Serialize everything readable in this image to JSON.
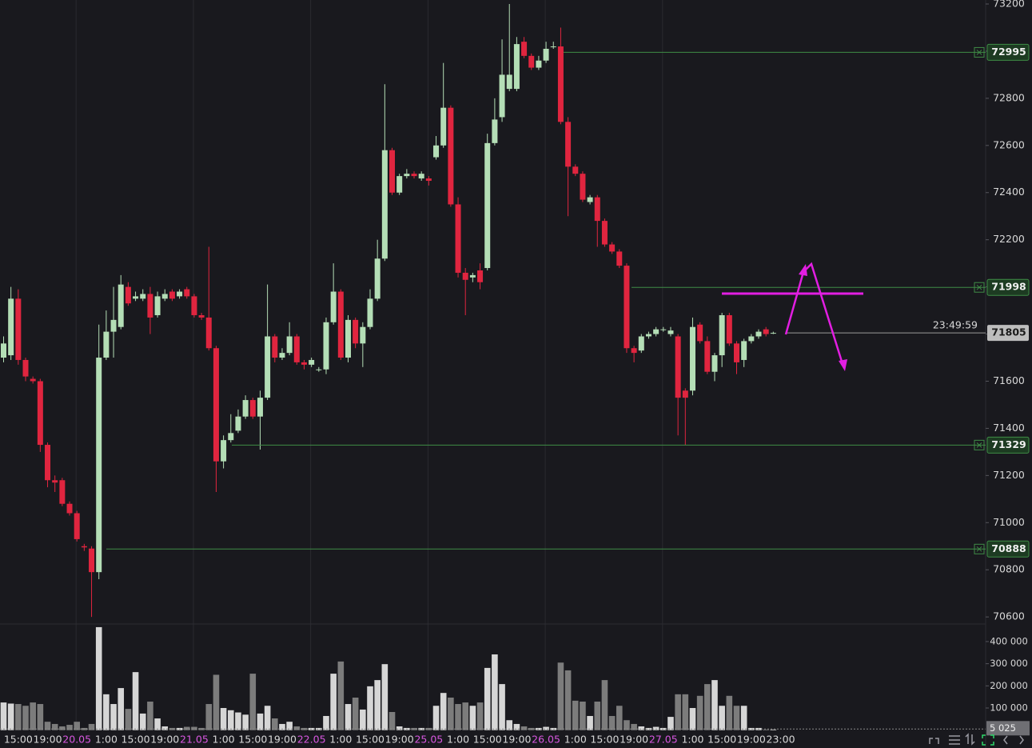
{
  "chart_data": {
    "type": "candlestick",
    "categories": [
      null,
      null,
      "15:00",
      null,
      null,
      null,
      "19:00",
      null,
      null,
      null,
      "20.05",
      null,
      null,
      null,
      "1:00",
      null,
      null,
      null,
      "15:00",
      null,
      null,
      null,
      "19:00",
      null,
      null,
      null,
      "21.05",
      null,
      null,
      null,
      "1:00",
      null,
      null,
      null,
      "15:00",
      null,
      null,
      null,
      "19:00",
      null,
      null,
      null,
      "22.05",
      null,
      null,
      null,
      "1:00",
      null,
      null,
      null,
      "15:00",
      null,
      null,
      null,
      "19:00",
      null,
      null,
      null,
      "25.05",
      null,
      null,
      null,
      "1:00",
      null,
      null,
      null,
      "15:00",
      null,
      null,
      null,
      "19:00",
      null,
      null,
      null,
      "26.05",
      null,
      null,
      null,
      "1:00",
      null,
      null,
      null,
      "15:00",
      null,
      null,
      null,
      "19:00",
      null,
      null,
      null,
      "27.05",
      null,
      null,
      null,
      "1:00",
      null,
      null,
      null,
      "15:00",
      null,
      null,
      null,
      "19:00",
      null,
      null,
      null,
      "23:00"
    ],
    "open": [
      71700,
      71710,
      71950,
      71690,
      71610,
      71600,
      71330,
      71180,
      71180,
      71080,
      71040,
      70900,
      70890,
      70790,
      71700,
      71810,
      71830,
      72000,
      71950,
      71950,
      71970,
      71880,
      71950,
      71980,
      71960,
      71990,
      71960,
      71880,
      71870,
      71740,
      71260,
      71350,
      71390,
      71450,
      71520,
      71450,
      71530,
      71790,
      71700,
      71720,
      71790,
      71680,
      71670,
      71650,
      71650,
      71850,
      71980,
      71700,
      71860,
      71760,
      71830,
      71950,
      72120,
      72580,
      72400,
      72470,
      72480,
      72460,
      72460,
      72550,
      72600,
      72760,
      72350,
      72060,
      72040,
      72070,
      72080,
      72610,
      72720,
      72840,
      72840,
      73040,
      72980,
      72930,
      72960,
      73020,
      73020,
      72700,
      72510,
      72480,
      72360,
      72380,
      72280,
      72180,
      72150,
      72090,
      71740,
      71730,
      71790,
      71800,
      71820,
      71800,
      71790,
      71560,
      71560,
      71840,
      71770,
      71640,
      71710,
      71880,
      71760,
      71690,
      71770,
      71790,
      71820,
      71805,
      null
    ],
    "high": [
      71790,
      72000,
      71990,
      71700,
      71620,
      71610,
      71340,
      71200,
      71190,
      71090,
      71050,
      70910,
      70900,
      71840,
      71900,
      72000,
      72050,
      72020,
      71980,
      71990,
      72000,
      71980,
      71990,
      71990,
      71990,
      72000,
      71970,
      71890,
      72170,
      71750,
      71370,
      71460,
      71480,
      71540,
      71530,
      71560,
      72010,
      71800,
      71740,
      71850,
      71800,
      71690,
      71700,
      71660,
      71870,
      72100,
      71990,
      71880,
      71870,
      71850,
      71990,
      72200,
      72860,
      72590,
      72480,
      72500,
      72490,
      72490,
      72470,
      72640,
      72950,
      72770,
      72380,
      72080,
      72060,
      72100,
      72650,
      72800,
      73050,
      73200,
      73060,
      73060,
      72990,
      72980,
      73040,
      73040,
      73100,
      72720,
      72520,
      72490,
      72390,
      72390,
      72290,
      72190,
      72160,
      72100,
      71750,
      71800,
      71810,
      71830,
      71830,
      71830,
      71800,
      71570,
      71870,
      71850,
      71790,
      71720,
      71890,
      71890,
      71770,
      71780,
      71800,
      71820,
      71830,
      71810,
      null
    ],
    "low": [
      71680,
      71690,
      71670,
      71600,
      71590,
      71300,
      71150,
      71130,
      71070,
      71030,
      70920,
      70880,
      70600,
      70760,
      71690,
      71700,
      71820,
      71920,
      71940,
      71940,
      71800,
      71870,
      71940,
      71940,
      71950,
      71950,
      71870,
      71860,
      71730,
      71130,
      71230,
      71340,
      71380,
      71440,
      71440,
      71310,
      71520,
      71680,
      71690,
      71710,
      71670,
      71650,
      71660,
      71640,
      71630,
      71840,
      71690,
      71680,
      71740,
      71660,
      71820,
      71940,
      72110,
      72390,
      72390,
      72460,
      72460,
      72450,
      72430,
      72540,
      72590,
      72340,
      72040,
      71880,
      72020,
      71990,
      72070,
      72600,
      72700,
      72830,
      72830,
      72970,
      72920,
      72920,
      72950,
      73010,
      72690,
      72300,
      72470,
      72360,
      72350,
      72170,
      72170,
      72140,
      72080,
      71720,
      71680,
      71720,
      71780,
      71790,
      71810,
      71790,
      71370,
      71330,
      71540,
      71760,
      71630,
      71600,
      71660,
      71750,
      71630,
      71660,
      71760,
      71780,
      71790,
      71800,
      null
    ],
    "close": [
      71760,
      71950,
      71690,
      71620,
      71600,
      71330,
      71180,
      71170,
      71080,
      71040,
      70930,
      70895,
      70790,
      71700,
      71810,
      71860,
      72010,
      71930,
      71960,
      71970,
      71870,
      71960,
      71970,
      71950,
      71980,
      71960,
      71880,
      71870,
      71740,
      71260,
      71350,
      71380,
      71450,
      71520,
      71450,
      71530,
      71790,
      71700,
      71720,
      71790,
      71680,
      71670,
      71690,
      71650,
      71850,
      71980,
      71700,
      71860,
      71760,
      71830,
      71950,
      72120,
      72580,
      72400,
      72470,
      72480,
      72470,
      72480,
      72450,
      72600,
      72760,
      72350,
      72060,
      72030,
      72050,
      72020,
      72610,
      72710,
      72900,
      72900,
      73030,
      72980,
      72930,
      72960,
      73010,
      73020,
      72700,
      72510,
      72480,
      72370,
      72380,
      72280,
      72180,
      72150,
      72090,
      71740,
      71720,
      71790,
      71800,
      71820,
      71820,
      71815,
      71530,
      71530,
      71830,
      71770,
      71640,
      71710,
      71880,
      71760,
      71680,
      71770,
      71790,
      71810,
      71800,
      71805,
      null
    ],
    "volume": [
      125000,
      120000,
      118000,
      110000,
      125000,
      118000,
      38000,
      28000,
      17000,
      24000,
      38000,
      10000,
      28000,
      465000,
      162000,
      118000,
      190000,
      96000,
      262000,
      75000,
      129000,
      53000,
      17000,
      10000,
      10000,
      15000,
      15000,
      10000,
      118000,
      250000,
      100000,
      90000,
      80000,
      70000,
      255000,
      75000,
      110000,
      53000,
      28000,
      38000,
      17000,
      10000,
      10000,
      10000,
      64000,
      255000,
      310000,
      118000,
      147000,
      93000,
      198000,
      226000,
      298000,
      82000,
      17000,
      10000,
      10000,
      10000,
      10000,
      110000,
      168000,
      147000,
      118000,
      125000,
      110000,
      125000,
      281000,
      342000,
      208000,
      45000,
      28000,
      17000,
      10000,
      10000,
      15000,
      10000,
      305000,
      270000,
      133000,
      129000,
      64000,
      129000,
      226000,
      64000,
      110000,
      45000,
      28000,
      17000,
      10000,
      15000,
      10000,
      60000,
      162000,
      162000,
      100000,
      155000,
      208000,
      226000,
      110000,
      155000,
      110000,
      110000,
      10000,
      10000,
      3000,
      3000,
      null
    ],
    "up_color": "#b4deb6",
    "down_color": "#e0253f",
    "up_volume_color": "#d6d6d6",
    "down_volume_color": "#7c7c7c",
    "ylim": [
      70570,
      73217
    ],
    "yticks": [
      70600,
      70800,
      71000,
      71200,
      71400,
      71600,
      71800,
      72000,
      72200,
      72400,
      72600,
      72800,
      73000,
      73200
    ],
    "volume_lim": [
      0,
      472000
    ],
    "volume_ticks": [
      {
        "value": 100000,
        "label": "100 000"
      },
      {
        "value": 200000,
        "label": "200 000"
      },
      {
        "value": 300000,
        "label": "300 000"
      },
      {
        "value": 400000,
        "label": "400 000"
      }
    ],
    "volume_marker": {
      "value": 5025,
      "label": "5 025"
    },
    "levels": [
      72995,
      71998,
      71329,
      70888
    ],
    "level_color": "#3f8c46",
    "last_price": 71805,
    "countdown": "23:49:59",
    "grid": true
  }
}
